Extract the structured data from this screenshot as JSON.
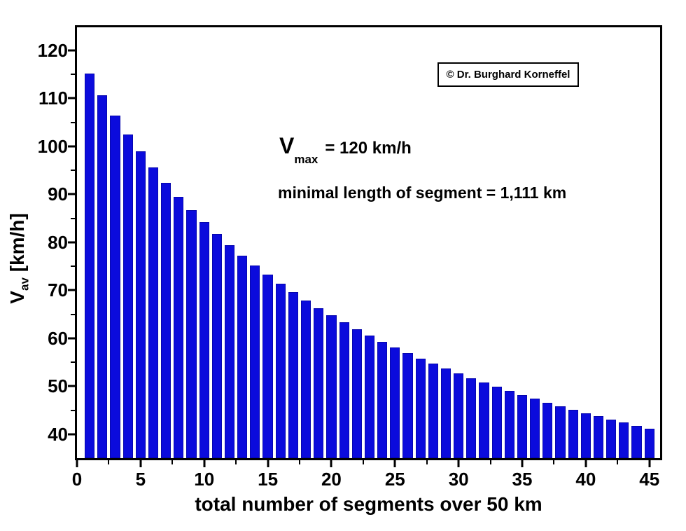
{
  "page": {
    "background": "#ffffff",
    "frame_color": "#000000",
    "text_color": "#000000"
  },
  "copyright": {
    "text": "© Dr. Burghard Korneffel"
  },
  "annotations": {
    "vmax_symbol": "V",
    "vmax_subscript": "max",
    "vmax_value_text": "= 120 km/h",
    "min_segment_text": "minimal length of segment = 1,111 km"
  },
  "axes": {
    "y_title_symbol": "V",
    "y_title_subscript": "av",
    "y_title_unit": " [km/h]"
  },
  "chart_data": {
    "type": "bar",
    "title": "",
    "xlabel": "total number of segments over 50 km",
    "ylabel": "V_av [km/h]",
    "x": [
      1,
      2,
      3,
      4,
      5,
      6,
      7,
      8,
      9,
      10,
      11,
      12,
      13,
      14,
      15,
      16,
      17,
      18,
      19,
      20,
      21,
      22,
      23,
      24,
      25,
      26,
      27,
      28,
      29,
      30,
      31,
      32,
      33,
      34,
      35,
      36,
      37,
      38,
      39,
      40,
      41,
      42,
      43,
      44,
      45
    ],
    "values": [
      115.1,
      110.6,
      106.4,
      102.5,
      98.9,
      95.6,
      92.4,
      89.5,
      86.7,
      84.2,
      81.7,
      79.4,
      77.2,
      75.2,
      73.2,
      71.4,
      69.6,
      67.9,
      66.3,
      64.8,
      63.3,
      61.9,
      60.6,
      59.3,
      58.1,
      56.9,
      55.8,
      54.7,
      53.7,
      52.7,
      51.7,
      50.8,
      49.9,
      49.0,
      48.2,
      47.4,
      46.6,
      45.8,
      45.1,
      44.4,
      43.7,
      43.0,
      42.4,
      41.7,
      41.1
    ],
    "xlim": [
      0,
      45.84
    ],
    "ylim": [
      35,
      124.8
    ],
    "x_major_ticks": [
      0,
      5,
      10,
      15,
      20,
      25,
      30,
      35,
      40,
      45
    ],
    "x_minor_ticks": [
      2.5,
      7.5,
      12.5,
      17.5,
      22.5,
      27.5,
      32.5,
      37.5,
      42.5
    ],
    "y_major_ticks": [
      40,
      50,
      60,
      70,
      80,
      90,
      100,
      110,
      120
    ],
    "y_minor_ticks": [
      45,
      55,
      65,
      75,
      85,
      95,
      105,
      115
    ],
    "bar_width": 0.78,
    "bar_color": "#0b0bdc",
    "bar_edge_color": "#0606ae",
    "grid": false,
    "legend": null
  }
}
